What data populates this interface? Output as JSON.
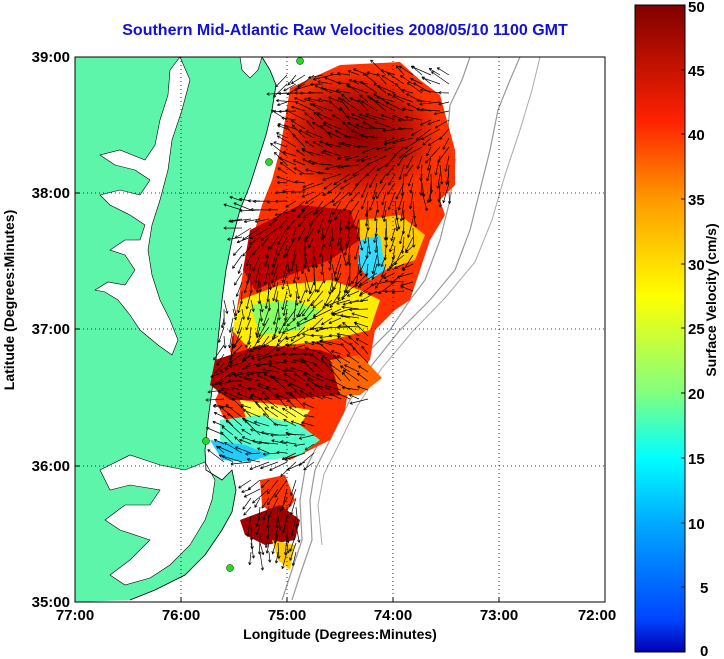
{
  "title": "Southern Mid-Atlantic Raw Velocities 2008/05/10 1100 GMT",
  "map": {
    "x_axis_label": "Longitude (Degrees:Minutes)",
    "y_axis_label": "Latitude (Degrees:Minutes)",
    "x_ticks": [
      {
        "value": -77,
        "label": "77:00"
      },
      {
        "value": -76,
        "label": "76:00"
      },
      {
        "value": -75,
        "label": "75:00"
      },
      {
        "value": -74,
        "label": "74:00"
      },
      {
        "value": -73,
        "label": "73:00"
      },
      {
        "value": -72,
        "label": "72:00"
      }
    ],
    "y_ticks": [
      {
        "value": 39,
        "label": "39:00"
      },
      {
        "value": 38,
        "label": "38:00"
      },
      {
        "value": 37,
        "label": "37:00"
      },
      {
        "value": 36,
        "label": "36:00"
      },
      {
        "value": 35,
        "label": "35:00"
      }
    ],
    "xlim": [
      -77,
      -72
    ],
    "ylim": [
      35,
      39
    ],
    "grid": "dotted",
    "land_color": "#5cf5aa",
    "water_color": "#ffffff",
    "station_color": "#22dd22",
    "stations": [
      {
        "lon": -74.92,
        "lat": 38.97
      },
      {
        "lon": -75.15,
        "lat": 38.23
      },
      {
        "lon": -75.72,
        "lat": 36.18
      },
      {
        "lon": -75.52,
        "lat": 35.25
      }
    ]
  },
  "colorbar": {
    "label": "Surface Velocity (cm/s)",
    "ticks": [
      "0",
      "5",
      "10",
      "15",
      "20",
      "25",
      "30",
      "35",
      "40",
      "45",
      "50"
    ],
    "min": 0,
    "max": 50,
    "colormap": "jet"
  },
  "chart_data": {
    "type": "heatmap",
    "title": "Southern Mid-Atlantic Raw Velocities 2008/05/10 1100 GMT",
    "xlabel": "Longitude (Degrees:Minutes)",
    "ylabel": "Latitude (Degrees:Minutes)",
    "xlim": [
      -77,
      -72
    ],
    "ylim": [
      35,
      39
    ],
    "value_label": "Surface Velocity (cm/s)",
    "value_range": [
      0,
      50
    ]
  }
}
